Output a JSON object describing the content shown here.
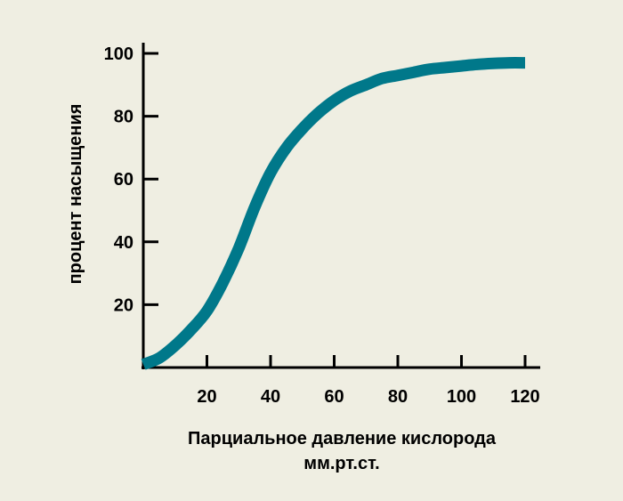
{
  "chart_data": {
    "type": "line",
    "xlabel": "Парциальное давление кислорода",
    "xunit": "мм.рт.ст.",
    "ylabel": "процент насыщения",
    "xlim": [
      0,
      120
    ],
    "ylim": [
      0,
      100
    ],
    "x_ticks": [
      "20",
      "40",
      "60",
      "80",
      "100",
      "120"
    ],
    "y_ticks": [
      "20",
      "40",
      "60",
      "80",
      "100"
    ],
    "line_color": "#00788a",
    "series": [
      {
        "x": [
          0,
          5,
          10,
          15,
          20,
          25,
          30,
          35,
          40,
          45,
          50,
          55,
          60,
          65,
          70,
          75,
          80,
          85,
          90,
          95,
          100,
          105,
          110,
          115,
          120
        ],
        "y": [
          1,
          3,
          7,
          12,
          18,
          27,
          38,
          51,
          62,
          70,
          76,
          81,
          85,
          88,
          90,
          92,
          93,
          94,
          95,
          95.5,
          96,
          96.5,
          96.8,
          97,
          97
        ]
      }
    ]
  }
}
